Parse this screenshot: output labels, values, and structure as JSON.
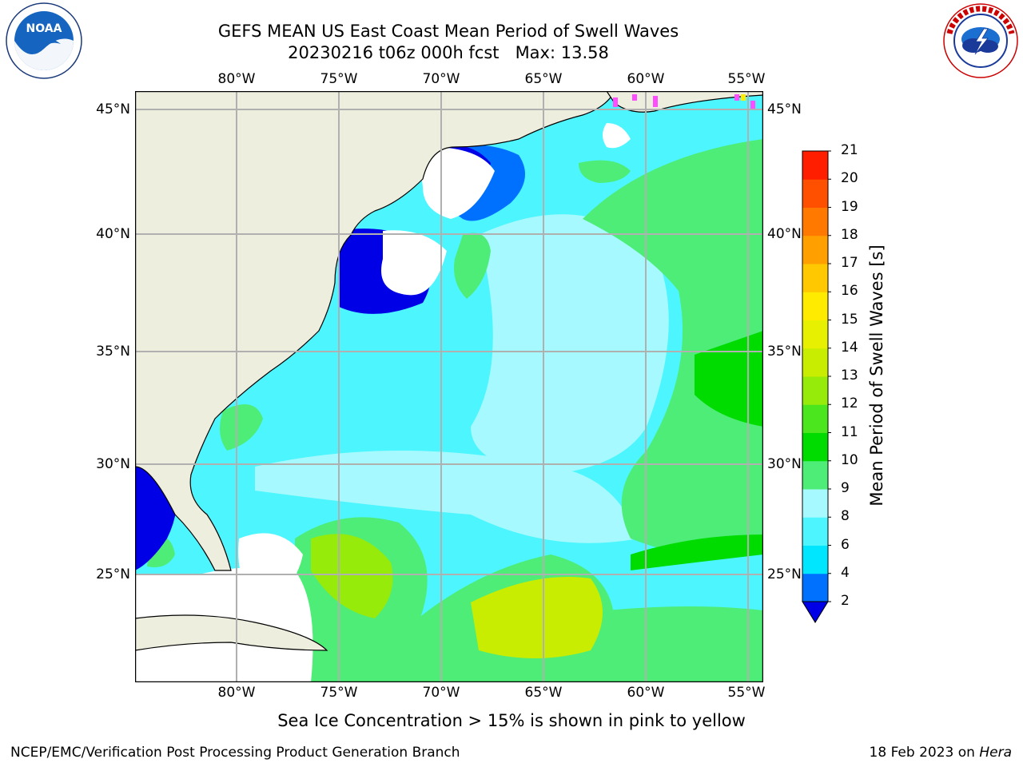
{
  "title": {
    "line1": "GEFS MEAN US East Coast Mean Period of Swell Waves",
    "line2": "20230216 t06z 000h fcst   Max: 13.58"
  },
  "logos": {
    "left": {
      "text": "NOAA",
      "ring_text": "NATIONAL OCEANIC AND ATMOSPHERIC ADMINISTRATION · U.S. DEPARTMENT OF COMMERCE"
    },
    "right": {
      "ring_text": "NATIONAL WEATHER SERVICE"
    }
  },
  "map": {
    "lon_labels": [
      "80°W",
      "75°W",
      "70°W",
      "65°W",
      "60°W",
      "55°W"
    ],
    "lat_labels": [
      "45°N",
      "40°N",
      "35°N",
      "30°N",
      "25°N"
    ],
    "colors": {
      "land": "#eeeedf",
      "no_data": "#ffffff",
      "grid": "#b0b0b0",
      "coast": "#000000"
    }
  },
  "colorbar": {
    "label": "Mean Period of Swell Waves [s]",
    "ticks": [
      "2",
      "4",
      "6",
      "8",
      "9",
      "10",
      "11",
      "12",
      "13",
      "14",
      "15",
      "16",
      "17",
      "18",
      "19",
      "20",
      "21"
    ],
    "colors": [
      "#0000e6",
      "#0070ff",
      "#00e6ff",
      "#4df5ff",
      "#a6faff",
      "#4ded78",
      "#00dc00",
      "#4be61e",
      "#96eb0a",
      "#c8ed00",
      "#e6f000",
      "#ffeb00",
      "#ffc800",
      "#ffa000",
      "#ff7800",
      "#ff5000",
      "#ff1e00",
      "#f00000"
    ]
  },
  "caption": "Sea Ice Concentration > 15% is shown in pink to yellow",
  "footer": {
    "left": "NCEP/EMC/Verification Post Processing Product Generation Branch",
    "right_prefix": "18 Feb 2023 on ",
    "right_italic": "Hera"
  }
}
